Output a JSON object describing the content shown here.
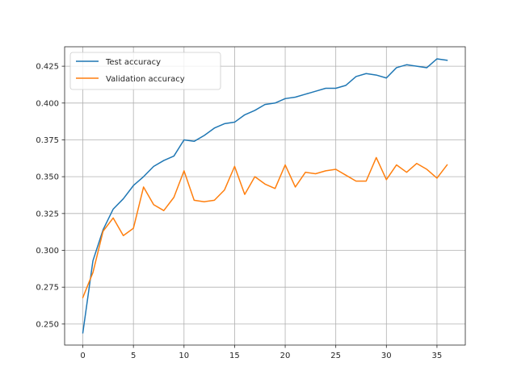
{
  "chart_data": {
    "type": "line",
    "title": "",
    "xlabel": "",
    "ylabel": "",
    "xlim": [
      -1.8,
      37.8
    ],
    "ylim": [
      0.2357,
      0.4382
    ],
    "xticks": [
      0,
      5,
      10,
      15,
      20,
      25,
      30,
      35
    ],
    "yticks": [
      0.25,
      0.275,
      0.3,
      0.325,
      0.35,
      0.375,
      0.4,
      0.425
    ],
    "ytick_labels": [
      "0.250",
      "0.275",
      "0.300",
      "0.325",
      "0.350",
      "0.375",
      "0.400",
      "0.425"
    ],
    "grid": true,
    "legend_position": "upper-left",
    "x": [
      0,
      1,
      2,
      3,
      4,
      5,
      6,
      7,
      8,
      9,
      10,
      11,
      12,
      13,
      14,
      15,
      16,
      17,
      18,
      19,
      20,
      21,
      22,
      23,
      24,
      25,
      26,
      27,
      28,
      29,
      30,
      31,
      32,
      33,
      34,
      35,
      36
    ],
    "series": [
      {
        "name": "Test accuracy",
        "color": "#1f77b4",
        "values": [
          0.244,
          0.293,
          0.314,
          0.328,
          0.335,
          0.344,
          0.35,
          0.357,
          0.361,
          0.364,
          0.375,
          0.374,
          0.378,
          0.383,
          0.386,
          0.387,
          0.392,
          0.395,
          0.399,
          0.4,
          0.403,
          0.404,
          0.406,
          0.408,
          0.41,
          0.41,
          0.412,
          0.418,
          0.42,
          0.419,
          0.417,
          0.424,
          0.426,
          0.425,
          0.424,
          0.43,
          0.429
        ]
      },
      {
        "name": "Validation accuracy",
        "color": "#ff7f0e",
        "values": [
          0.268,
          0.285,
          0.313,
          0.322,
          0.31,
          0.315,
          0.343,
          0.331,
          0.327,
          0.336,
          0.354,
          0.334,
          0.333,
          0.334,
          0.341,
          0.357,
          0.338,
          0.35,
          0.345,
          0.342,
          0.358,
          0.343,
          0.353,
          0.352,
          0.354,
          0.355,
          0.351,
          0.347,
          0.347,
          0.363,
          0.348,
          0.358,
          0.353,
          0.359,
          0.355,
          0.349,
          0.358
        ]
      }
    ]
  }
}
